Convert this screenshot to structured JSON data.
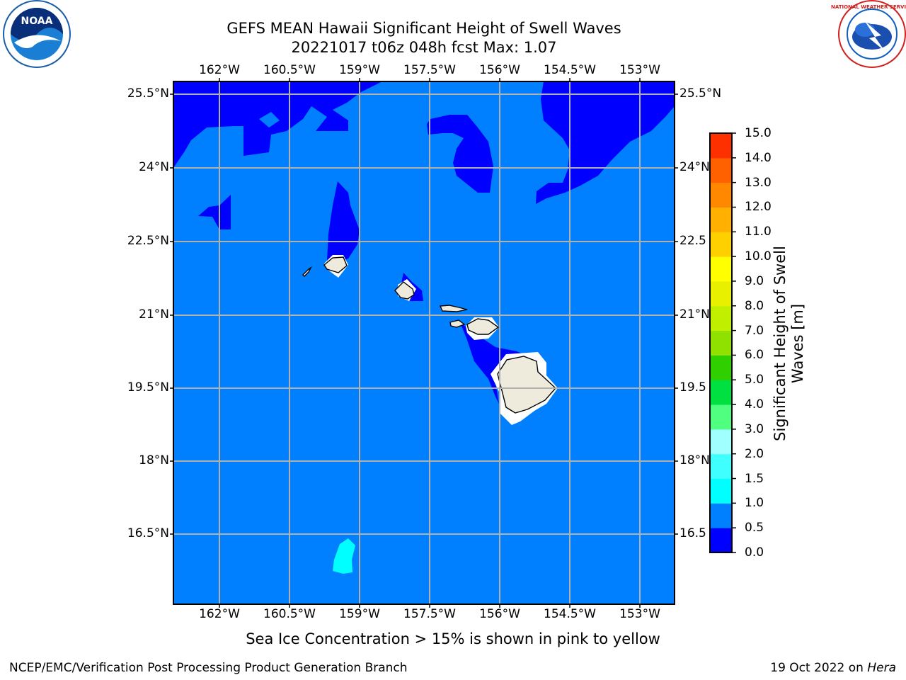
{
  "title": {
    "line1": "GEFS MEAN Hawaii Significant Height of Swell Waves",
    "line2": "20221017 t06z 048h fcst   Max: 1.07"
  },
  "map": {
    "lon_labels": [
      "162°W",
      "160.5°W",
      "159°W",
      "157.5°W",
      "156°W",
      "154.5°W",
      "153°W"
    ],
    "lat_labels": [
      "25.5°N",
      "24°N",
      "22.5°N",
      "21°N",
      "19.5°N",
      "18°N",
      "16.5°N"
    ],
    "lat_labels_right": [
      "25.5°N",
      "24°N",
      "22.5",
      "21°N",
      "19.5",
      "18°N",
      "16.5"
    ],
    "colors": {
      "band_0_0_5": "#0000ff",
      "band_0_5_1_0": "#0080ff",
      "band_1_0_1_5": "#00ffff",
      "land": "#efebdc"
    }
  },
  "colorbar": {
    "title": "Significant Height of Swell Waves [m]",
    "ticks": [
      "0.0",
      "0.5",
      "1.0",
      "1.5",
      "2.0",
      "3.0",
      "4.0",
      "5.0",
      "6.0",
      "7.0",
      "8.0",
      "9.0",
      "10.0",
      "11.0",
      "12.0",
      "13.0",
      "14.0",
      "15.0"
    ],
    "colors": [
      "#0000ff",
      "#0080ff",
      "#00ffff",
      "#40ffff",
      "#a0ffff",
      "#50ff80",
      "#00e040",
      "#30d000",
      "#90e000",
      "#c0f000",
      "#e8f000",
      "#ffff00",
      "#ffd000",
      "#ffb000",
      "#ff8800",
      "#ff6000",
      "#ff3000"
    ]
  },
  "note": "Sea Ice Concentration > 15% is shown in pink to yellow",
  "footer": {
    "left": "NCEP/EMC/Verification Post Processing Product Generation Branch",
    "right_prefix": "19 Oct 2022 on ",
    "right_host": "Hera"
  },
  "logos": {
    "noaa_text": "NOAA",
    "nws_text": "NATIONAL WEATHER SERVICE"
  }
}
